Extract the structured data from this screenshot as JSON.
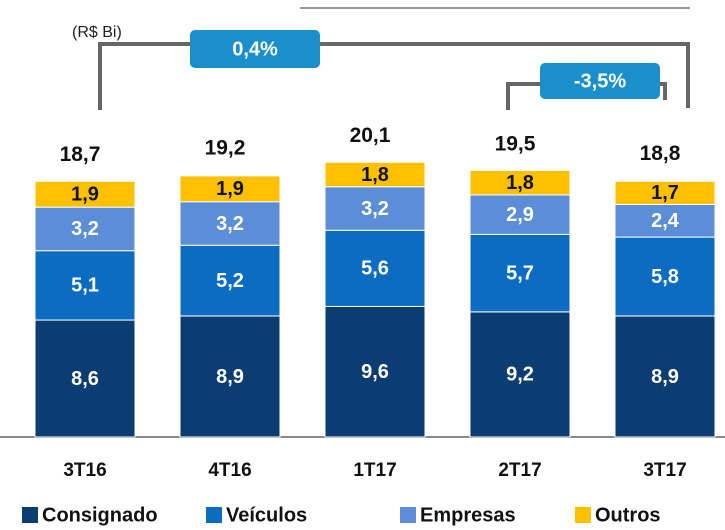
{
  "chart_data": {
    "type": "bar",
    "stacked": true,
    "subtitle": "(R$ Bi)",
    "categories": [
      "3T16",
      "4T16",
      "1T17",
      "2T17",
      "3T17"
    ],
    "series": [
      {
        "name": "Consignado",
        "color": "#0b3c72",
        "values": [
          8.6,
          8.9,
          9.6,
          9.2,
          8.9
        ],
        "value_labels": [
          "8,6",
          "8,9",
          "9,6",
          "9,2",
          "8,9"
        ]
      },
      {
        "name": "Veículos",
        "color": "#0c6cc2",
        "values": [
          5.1,
          5.2,
          5.6,
          5.7,
          5.8
        ],
        "value_labels": [
          "5,1",
          "5,2",
          "5,6",
          "5,7",
          "5,8"
        ]
      },
      {
        "name": "Empresas",
        "color": "#5b8ed6",
        "values": [
          3.2,
          3.2,
          3.2,
          2.9,
          2.4
        ],
        "value_labels": [
          "3,2",
          "3,2",
          "3,2",
          "2,9",
          "2,4"
        ]
      },
      {
        "name": "Outros",
        "color": "#ffc000",
        "values": [
          1.9,
          1.9,
          1.8,
          1.8,
          1.7
        ],
        "value_labels": [
          "1,9",
          "1,9",
          "1,8",
          "1,8",
          "1,7"
        ]
      }
    ],
    "totals": {
      "values": [
        18.7,
        19.2,
        20.1,
        19.5,
        18.8
      ],
      "value_labels": [
        "18,7",
        "19,2",
        "20,1",
        "19,5",
        "18,8"
      ]
    },
    "annotations": [
      "0,4%",
      "-3,5%"
    ]
  }
}
